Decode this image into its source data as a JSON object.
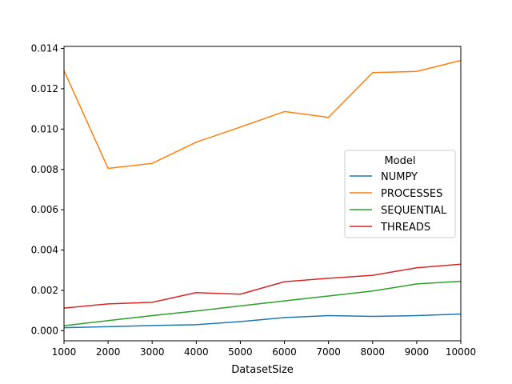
{
  "chart_data": {
    "type": "line",
    "title": "",
    "xlabel": "DatasetSize",
    "ylabel": "",
    "x": [
      1000,
      2000,
      3000,
      4000,
      5000,
      6000,
      7000,
      8000,
      9000,
      10000
    ],
    "xlim": [
      1000,
      10000
    ],
    "ylim": [
      -0.0005,
      0.0141
    ],
    "xticks": [
      1000,
      2000,
      3000,
      4000,
      5000,
      6000,
      7000,
      8000,
      9000,
      10000
    ],
    "yticks": [
      0.0,
      0.002,
      0.004,
      0.006,
      0.008,
      0.01,
      0.012,
      0.014
    ],
    "ytick_labels": [
      "0.000",
      "0.002",
      "0.004",
      "0.006",
      "0.008",
      "0.010",
      "0.012",
      "0.014"
    ],
    "grid": false,
    "legend": {
      "title": "Model",
      "placement": "center-right"
    },
    "series": [
      {
        "name": "NUMPY",
        "color": "#1f77b4",
        "values": [
          0.00015,
          0.0002,
          0.00026,
          0.0003,
          0.00045,
          0.00065,
          0.00075,
          0.00071,
          0.00075,
          0.00083
        ]
      },
      {
        "name": "PROCESSES",
        "color": "#ff7f0e",
        "values": [
          0.0129,
          0.00805,
          0.0083,
          0.00935,
          0.0101,
          0.01087,
          0.01058,
          0.0128,
          0.01286,
          0.0134
        ]
      },
      {
        "name": "SEQUENTIAL",
        "color": "#2ca02c",
        "values": [
          0.00025,
          0.0005,
          0.00075,
          0.00098,
          0.00123,
          0.00148,
          0.00172,
          0.00197,
          0.00232,
          0.00245
        ]
      },
      {
        "name": "THREADS",
        "color": "#d62728",
        "values": [
          0.00112,
          0.00133,
          0.00141,
          0.00189,
          0.00181,
          0.00243,
          0.0026,
          0.00275,
          0.00312,
          0.0033
        ]
      }
    ]
  }
}
